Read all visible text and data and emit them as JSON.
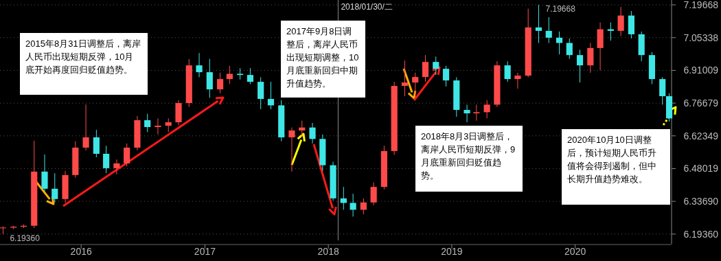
{
  "chart_data": {
    "type": "candlestick",
    "x": [
      "2015-05-15",
      "2015-06-15",
      "2015-07-15",
      "2015-08-15",
      "2015-09-15",
      "2015-10-15",
      "2015-11-15",
      "2015-12-15",
      "2016-01-15",
      "2016-02-15",
      "2016-03-15",
      "2016-04-15",
      "2016-05-15",
      "2016-06-15",
      "2016-07-15",
      "2016-08-15",
      "2016-09-15",
      "2016-10-15",
      "2016-11-15",
      "2016-12-15",
      "2017-01-15",
      "2017-02-15",
      "2017-03-15",
      "2017-04-15",
      "2017-05-15",
      "2017-06-15",
      "2017-07-15",
      "2017-08-15",
      "2017-09-15",
      "2017-10-15",
      "2017-11-15",
      "2017-12-15",
      "2018-01-15",
      "2018-02-15",
      "2018-03-15",
      "2018-04-15",
      "2018-05-15",
      "2018-06-15",
      "2018-07-15",
      "2018-08-15",
      "2018-09-15",
      "2018-10-15",
      "2018-11-15",
      "2018-12-15",
      "2019-01-15",
      "2019-02-15",
      "2019-03-15",
      "2019-04-15",
      "2019-05-15",
      "2019-06-15",
      "2019-07-15",
      "2019-08-15",
      "2019-09-15",
      "2019-10-15",
      "2019-11-15",
      "2019-12-15",
      "2020-01-15",
      "2020-02-15",
      "2020-03-15",
      "2020-04-15",
      "2020-05-15",
      "2020-06-15",
      "2020-07-15",
      "2020-08-15",
      "2020-09-15",
      "2020-10-05"
    ],
    "ohlc": [
      [
        6.22,
        6.228,
        6.1936,
        6.222
      ],
      [
        6.222,
        6.23,
        6.215,
        6.226
      ],
      [
        6.226,
        6.236,
        6.22,
        6.23
      ],
      [
        6.23,
        6.602,
        6.22,
        6.467
      ],
      [
        6.467,
        6.542,
        6.38,
        6.392
      ],
      [
        6.392,
        6.46,
        6.332,
        6.347
      ],
      [
        6.347,
        6.47,
        6.33,
        6.452
      ],
      [
        6.452,
        6.6,
        6.44,
        6.572
      ],
      [
        6.572,
        6.761,
        6.56,
        6.617
      ],
      [
        6.617,
        6.65,
        6.53,
        6.545
      ],
      [
        6.545,
        6.58,
        6.46,
        6.482
      ],
      [
        6.482,
        6.52,
        6.455,
        6.503
      ],
      [
        6.503,
        6.59,
        6.49,
        6.572
      ],
      [
        6.572,
        6.71,
        6.56,
        6.692
      ],
      [
        6.692,
        6.72,
        6.64,
        6.662
      ],
      [
        6.662,
        6.7,
        6.63,
        6.668
      ],
      [
        6.668,
        6.7,
        6.64,
        6.683
      ],
      [
        6.683,
        6.78,
        6.67,
        6.767
      ],
      [
        6.767,
        6.96,
        6.75,
        6.932
      ],
      [
        6.932,
        6.986,
        6.88,
        6.902
      ],
      [
        6.902,
        6.96,
        6.79,
        6.827
      ],
      [
        6.827,
        6.9,
        6.81,
        6.872
      ],
      [
        6.872,
        6.93,
        6.85,
        6.895
      ],
      [
        6.895,
        6.92,
        6.87,
        6.89
      ],
      [
        6.89,
        6.92,
        6.85,
        6.86
      ],
      [
        6.86,
        6.88,
        6.74,
        6.785
      ],
      [
        6.785,
        6.86,
        6.74,
        6.757
      ],
      [
        6.757,
        6.78,
        6.6,
        6.617
      ],
      [
        6.617,
        6.66,
        6.467,
        6.647
      ],
      [
        6.647,
        6.69,
        6.62,
        6.66
      ],
      [
        6.66,
        6.68,
        6.59,
        6.61
      ],
      [
        6.61,
        6.63,
        6.47,
        6.495
      ],
      [
        6.495,
        6.51,
        6.34,
        6.35
      ],
      [
        6.35,
        6.4,
        6.3,
        6.33
      ],
      [
        6.33,
        6.37,
        6.27,
        6.3
      ],
      [
        6.3,
        6.35,
        6.28,
        6.332
      ],
      [
        6.332,
        6.42,
        6.32,
        6.4
      ],
      [
        6.4,
        6.58,
        6.39,
        6.557
      ],
      [
        6.557,
        6.86,
        6.54,
        6.842
      ],
      [
        6.842,
        6.953,
        6.797,
        6.857
      ],
      [
        6.857,
        6.9,
        6.8,
        6.881
      ],
      [
        6.881,
        6.977,
        6.86,
        6.947
      ],
      [
        6.947,
        6.97,
        6.89,
        6.917
      ],
      [
        6.917,
        6.93,
        6.84,
        6.866
      ],
      [
        6.866,
        6.88,
        6.707,
        6.737
      ],
      [
        6.737,
        6.76,
        6.683,
        6.722
      ],
      [
        6.722,
        6.76,
        6.69,
        6.727
      ],
      [
        6.727,
        6.78,
        6.7,
        6.76
      ],
      [
        6.76,
        6.95,
        6.75,
        6.932
      ],
      [
        6.932,
        6.95,
        6.86,
        6.872
      ],
      [
        6.872,
        6.9,
        6.83,
        6.887
      ],
      [
        6.887,
        7.18,
        6.88,
        7.098
      ],
      [
        7.098,
        7.19668,
        7.03,
        7.083
      ],
      [
        7.083,
        7.143,
        7.03,
        7.053
      ],
      [
        7.053,
        7.08,
        6.98,
        7.03
      ],
      [
        7.03,
        7.05,
        6.96,
        6.977
      ],
      [
        6.977,
        7.0,
        6.857,
        6.932
      ],
      [
        6.932,
        7.03,
        6.9,
        7.008
      ],
      [
        7.008,
        7.12,
        6.91,
        7.09
      ],
      [
        7.09,
        7.12,
        7.04,
        7.083
      ],
      [
        7.083,
        7.188,
        7.06,
        7.15
      ],
      [
        7.15,
        7.17,
        7.05,
        7.068
      ],
      [
        7.068,
        7.08,
        6.95,
        6.977
      ],
      [
        6.977,
        6.99,
        6.85,
        6.872
      ],
      [
        6.872,
        6.88,
        6.76,
        6.797
      ],
      [
        6.797,
        6.81,
        6.686,
        6.7
      ]
    ],
    "xlim": [
      "2015-05-06",
      "2020-10-12"
    ],
    "xticks": [
      {
        "value": "2016-01-01",
        "label": "2016"
      },
      {
        "value": "2017-01-01",
        "label": "2017"
      },
      {
        "value": "2018-01-01",
        "label": "2018"
      },
      {
        "value": "2019-01-01",
        "label": "2019"
      },
      {
        "value": "2020-01-01",
        "label": "2020"
      }
    ],
    "ylim": [
      6.166,
      7.218
    ],
    "yticks": [
      7.19668,
      7.05338,
      6.91009,
      6.76679,
      6.62349,
      6.48019,
      {
        "value": 6.3369,
        "label": "6.33690"
      },
      {
        "value": 6.1936,
        "label": "6.19360"
      }
    ],
    "grid": "y",
    "ref_lines": [
      {
        "axis": "x",
        "value": "2018-01-30",
        "label": "2018/01/30/二",
        "color": "#888888"
      }
    ],
    "annotations": [
      "2015年8月31日调整后，离岸人民币出现短期反弹，10月底开始再度回归贬值趋势。",
      "2017年9月8日调整后，离岸人民币出现短期调整，10月底重新回归中期升值趋势。",
      "2018年8月3日调整后，离岸人民币短期反弹，9月底重新回归贬值趋势。",
      "2020年10月10日调整后，预计短期人民币升值将会得到遏制，但中长期升值趋势难改。",
      {
        "text": "7.19668",
        "x": "2019-09-15",
        "y": 7.19668
      },
      {
        "text": "6.19360",
        "x": "2015-05-15",
        "y": 6.1936
      }
    ]
  }
}
